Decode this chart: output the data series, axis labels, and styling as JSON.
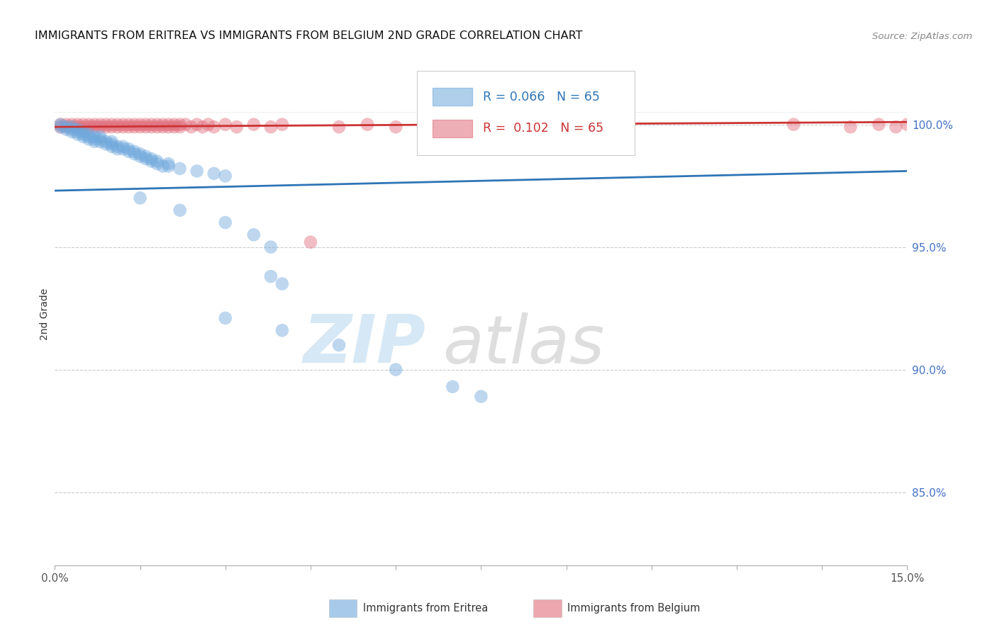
{
  "title": "IMMIGRANTS FROM ERITREA VS IMMIGRANTS FROM BELGIUM 2ND GRADE CORRELATION CHART",
  "source": "Source: ZipAtlas.com",
  "ylabel": "2nd Grade",
  "xlim": [
    0.0,
    0.15
  ],
  "ylim": [
    0.82,
    1.025
  ],
  "blue_color": "#6fa8dc",
  "pink_color": "#e06c7a",
  "blue_line_color": "#2e75b6",
  "pink_line_color": "#cc3333",
  "R_blue": 0.066,
  "N_blue": 65,
  "R_pink": 0.102,
  "N_pink": 65,
  "legend_label_blue": "Immigrants from Eritrea",
  "legend_label_pink": "Immigrants from Belgium",
  "grid_color": "#cccccc",
  "right_tick_color": "#4472c4",
  "yticks_right": [
    0.85,
    0.9,
    0.95,
    1.0
  ],
  "ytick_labels_right": [
    "85.0%",
    "90.0%",
    "95.0%",
    "100.0%"
  ],
  "xticks": [
    0.0,
    0.015,
    0.03,
    0.045,
    0.06,
    0.075,
    0.09,
    0.105,
    0.12,
    0.135,
    0.15
  ],
  "blue_line_x": [
    0.0,
    0.15
  ],
  "blue_line_y": [
    0.973,
    0.981
  ],
  "pink_line_x": [
    0.0,
    0.15
  ],
  "pink_line_y": [
    0.999,
    1.001
  ]
}
